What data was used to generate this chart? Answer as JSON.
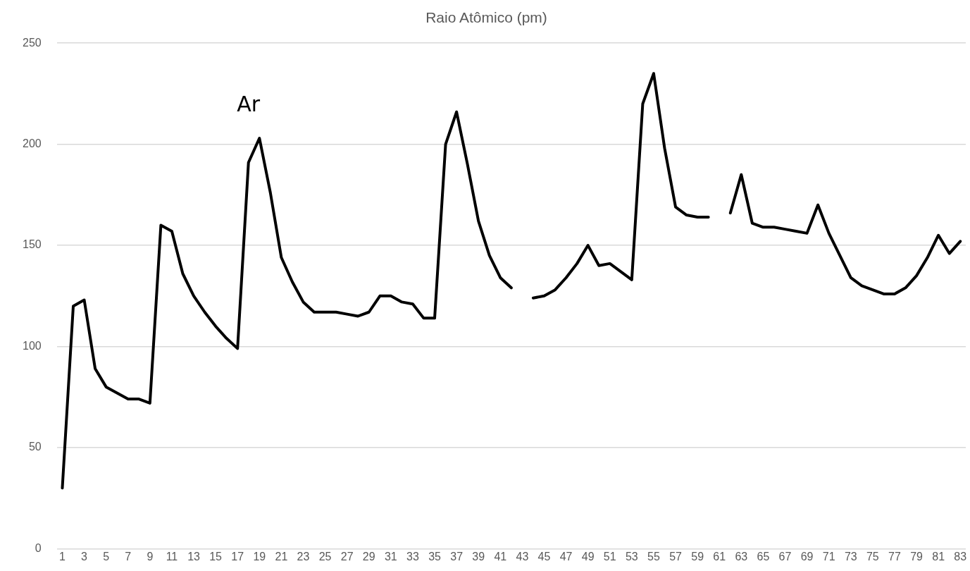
{
  "chart_data": {
    "type": "line",
    "title": "Raio Atômico (pm)",
    "x": [
      1,
      2,
      3,
      4,
      5,
      6,
      7,
      8,
      9,
      10,
      11,
      12,
      13,
      14,
      15,
      16,
      17,
      18,
      19,
      20,
      21,
      22,
      23,
      24,
      25,
      26,
      27,
      28,
      29,
      30,
      31,
      32,
      33,
      34,
      35,
      36,
      37,
      38,
      39,
      40,
      41,
      42,
      43,
      44,
      45,
      46,
      47,
      48,
      49,
      50,
      51,
      52,
      53,
      54,
      55,
      56,
      57,
      58,
      59,
      60,
      61,
      62,
      63,
      64,
      65,
      66,
      67,
      68,
      69,
      70,
      71,
      72,
      73,
      74,
      75,
      76,
      77,
      78,
      79,
      80,
      81,
      82,
      83
    ],
    "series": [
      {
        "color": "#000000",
        "values": [
          30,
          120,
          123,
          89,
          80,
          77,
          74,
          74,
          72,
          160,
          157,
          136,
          125,
          117,
          110,
          104,
          99,
          191,
          203,
          176,
          144,
          132,
          122,
          117,
          117,
          117,
          116,
          115,
          117,
          125,
          125,
          122,
          121,
          114,
          114,
          200,
          216,
          190,
          162,
          145,
          134,
          129,
          null,
          124,
          125,
          128,
          134,
          141,
          150,
          140,
          141,
          137,
          133,
          220,
          235,
          198,
          169,
          165,
          164,
          164,
          null,
          166,
          185,
          161,
          159,
          159,
          158,
          157,
          156,
          170,
          156,
          145,
          134,
          130,
          128,
          126,
          126,
          129,
          135,
          144,
          155,
          146,
          152
        ]
      }
    ],
    "xlim": [
      0.5,
      83.5
    ],
    "xticks": [
      1,
      3,
      5,
      7,
      9,
      11,
      13,
      15,
      17,
      19,
      21,
      23,
      25,
      27,
      29,
      31,
      33,
      35,
      37,
      39,
      41,
      43,
      45,
      47,
      49,
      51,
      53,
      55,
      57,
      59,
      61,
      63,
      65,
      67,
      69,
      71,
      73,
      75,
      77,
      79,
      81,
      83
    ],
    "ylim": [
      0,
      250
    ],
    "yticks": [
      0,
      50,
      100,
      150,
      200,
      250
    ],
    "grid": "y",
    "legend": false,
    "marker": "none",
    "line_style": "solid",
    "annotations": [
      {
        "text": "Ar",
        "x": 18,
        "y": 191
      }
    ]
  }
}
